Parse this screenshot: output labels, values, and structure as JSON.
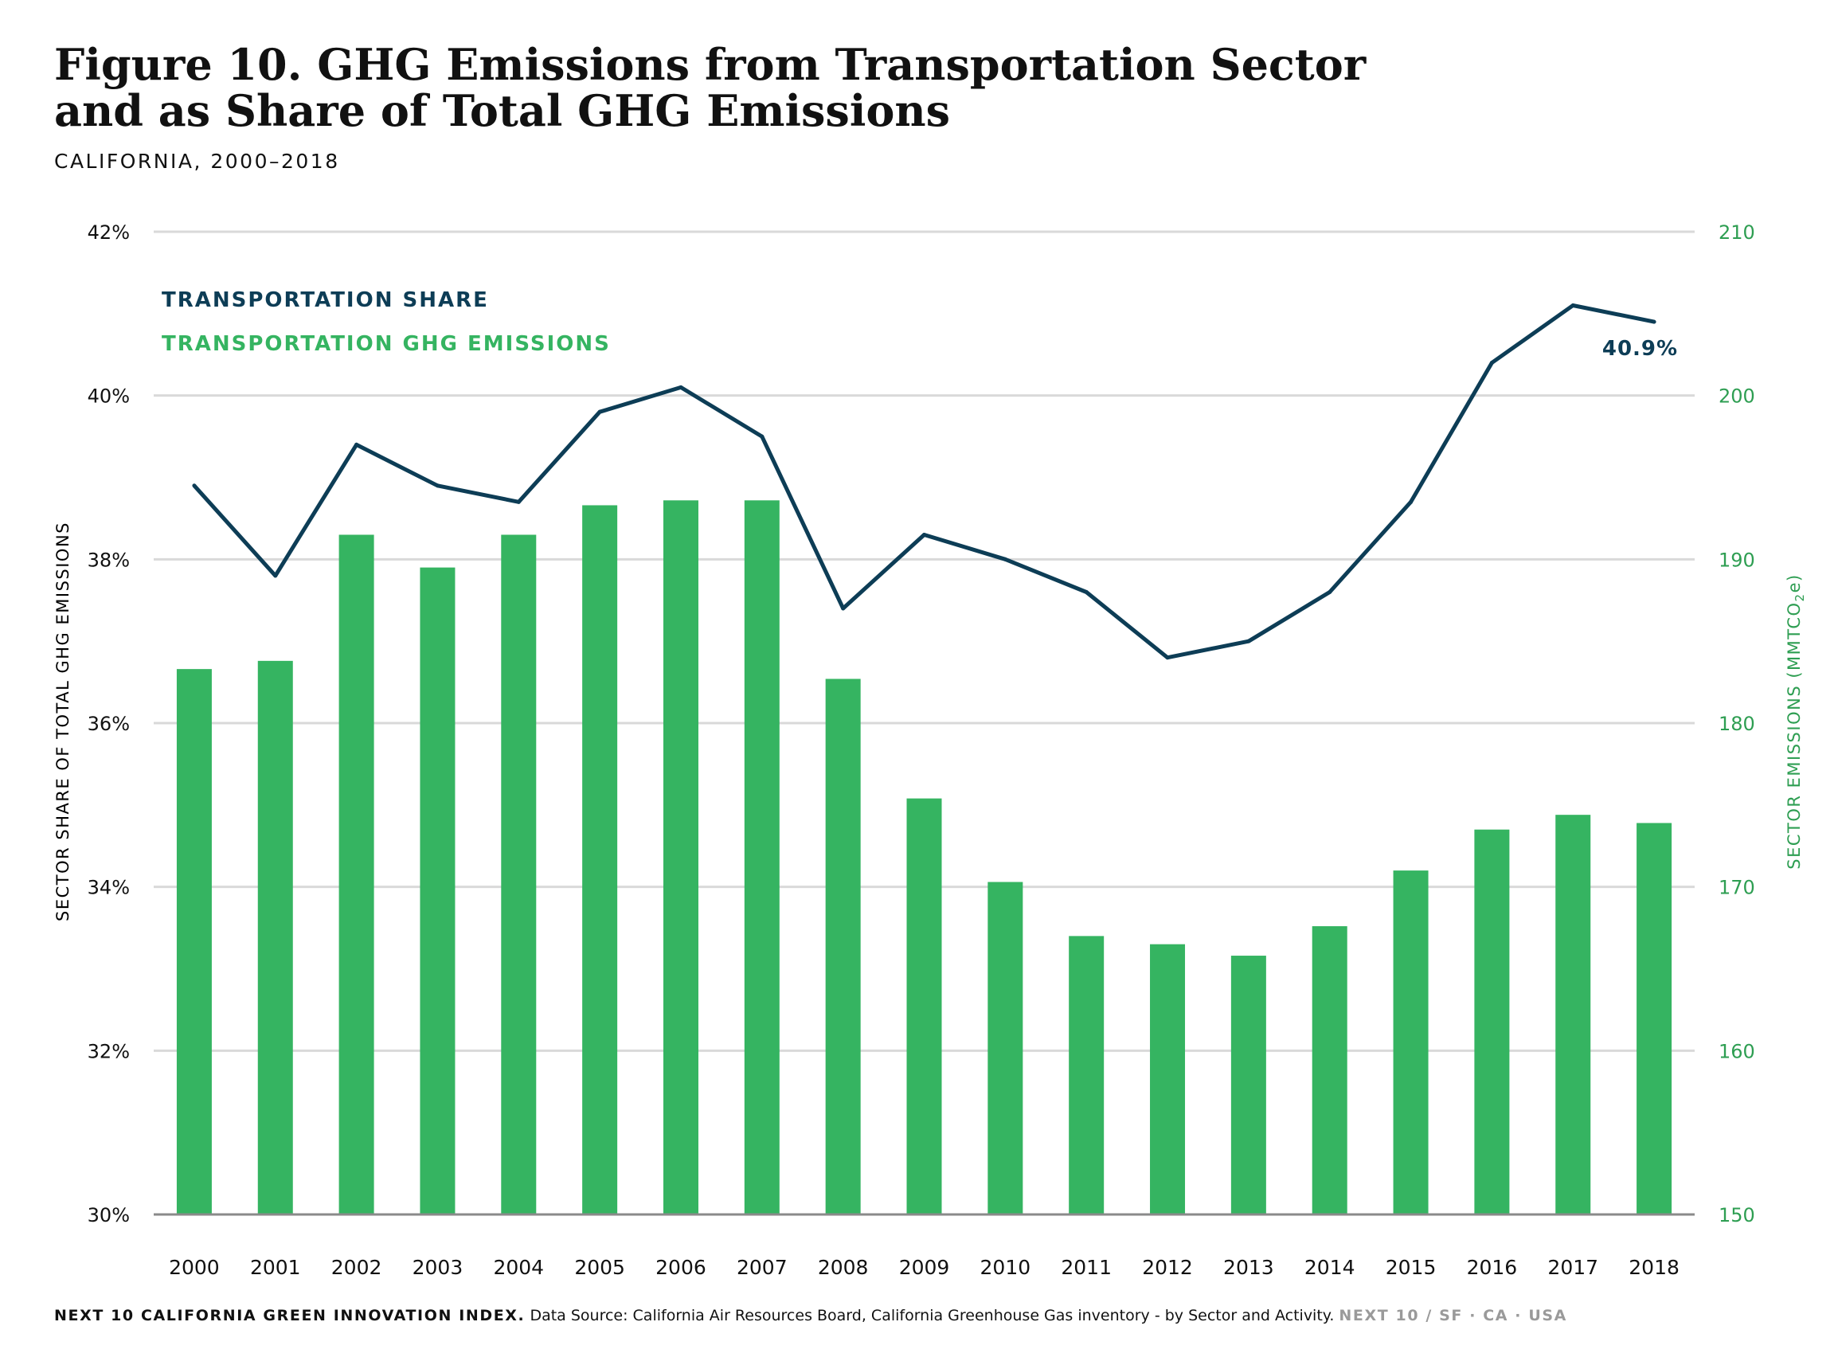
{
  "title": "Figure 10. GHG Emissions from Transportation Sector and as Share of Total GHG Emissions",
  "subtitle": "CALIFORNIA, 2000–2018",
  "footer": {
    "brand": "NEXT 10 CALIFORNIA GREEN INNOVATION INDEX.",
    "source": "Data Source: California Air Resources Board, California Greenhouse Gas inventory - by Sector and Activity.",
    "tag": "NEXT 10  /  SF · CA · USA"
  },
  "colors": {
    "line": "#0d3d56",
    "bars": "#35b461",
    "right_axis": "#2e9e52",
    "grid": "#d9d9d9",
    "baseline": "#8a8a8a"
  },
  "chart_data": {
    "type": "bar",
    "categories": [
      "2000",
      "2001",
      "2002",
      "2003",
      "2004",
      "2005",
      "2006",
      "2007",
      "2008",
      "2009",
      "2010",
      "2011",
      "2012",
      "2013",
      "2014",
      "2015",
      "2016",
      "2017",
      "2018"
    ],
    "series": [
      {
        "name": "TRANSPORTATION GHG EMISSIONS",
        "type": "bar",
        "axis": "right",
        "values": [
          183.3,
          183.8,
          191.5,
          189.5,
          191.5,
          193.3,
          193.6,
          193.6,
          182.7,
          175.4,
          170.3,
          167.0,
          166.5,
          165.8,
          167.6,
          171.0,
          173.5,
          174.4,
          173.9
        ]
      },
      {
        "name": "TRANSPORTATION SHARE",
        "type": "line",
        "axis": "left",
        "values": [
          38.9,
          37.8,
          39.4,
          38.9,
          38.7,
          39.8,
          40.1,
          39.5,
          37.4,
          38.3,
          38.0,
          37.6,
          36.8,
          37.0,
          37.6,
          38.7,
          40.4,
          41.1,
          40.9
        ]
      }
    ],
    "left_axis": {
      "label": "SECTOR SHARE OF TOTAL GHG EMISSIONS",
      "ylim": [
        30,
        42
      ],
      "ticks": [
        "42%",
        "40%",
        "38%",
        "36%",
        "34%",
        "32%",
        "30%"
      ]
    },
    "right_axis": {
      "label": "SECTOR EMISSIONS (MMTCO",
      "label_sub": "2",
      "label_end": "e)",
      "ylim": [
        150,
        210
      ],
      "ticks": [
        "210",
        "200",
        "190",
        "180",
        "170",
        "160",
        "150"
      ]
    },
    "annotation": {
      "text": "40.9%",
      "category": "2018"
    },
    "legend": "top-left",
    "grid": true
  }
}
